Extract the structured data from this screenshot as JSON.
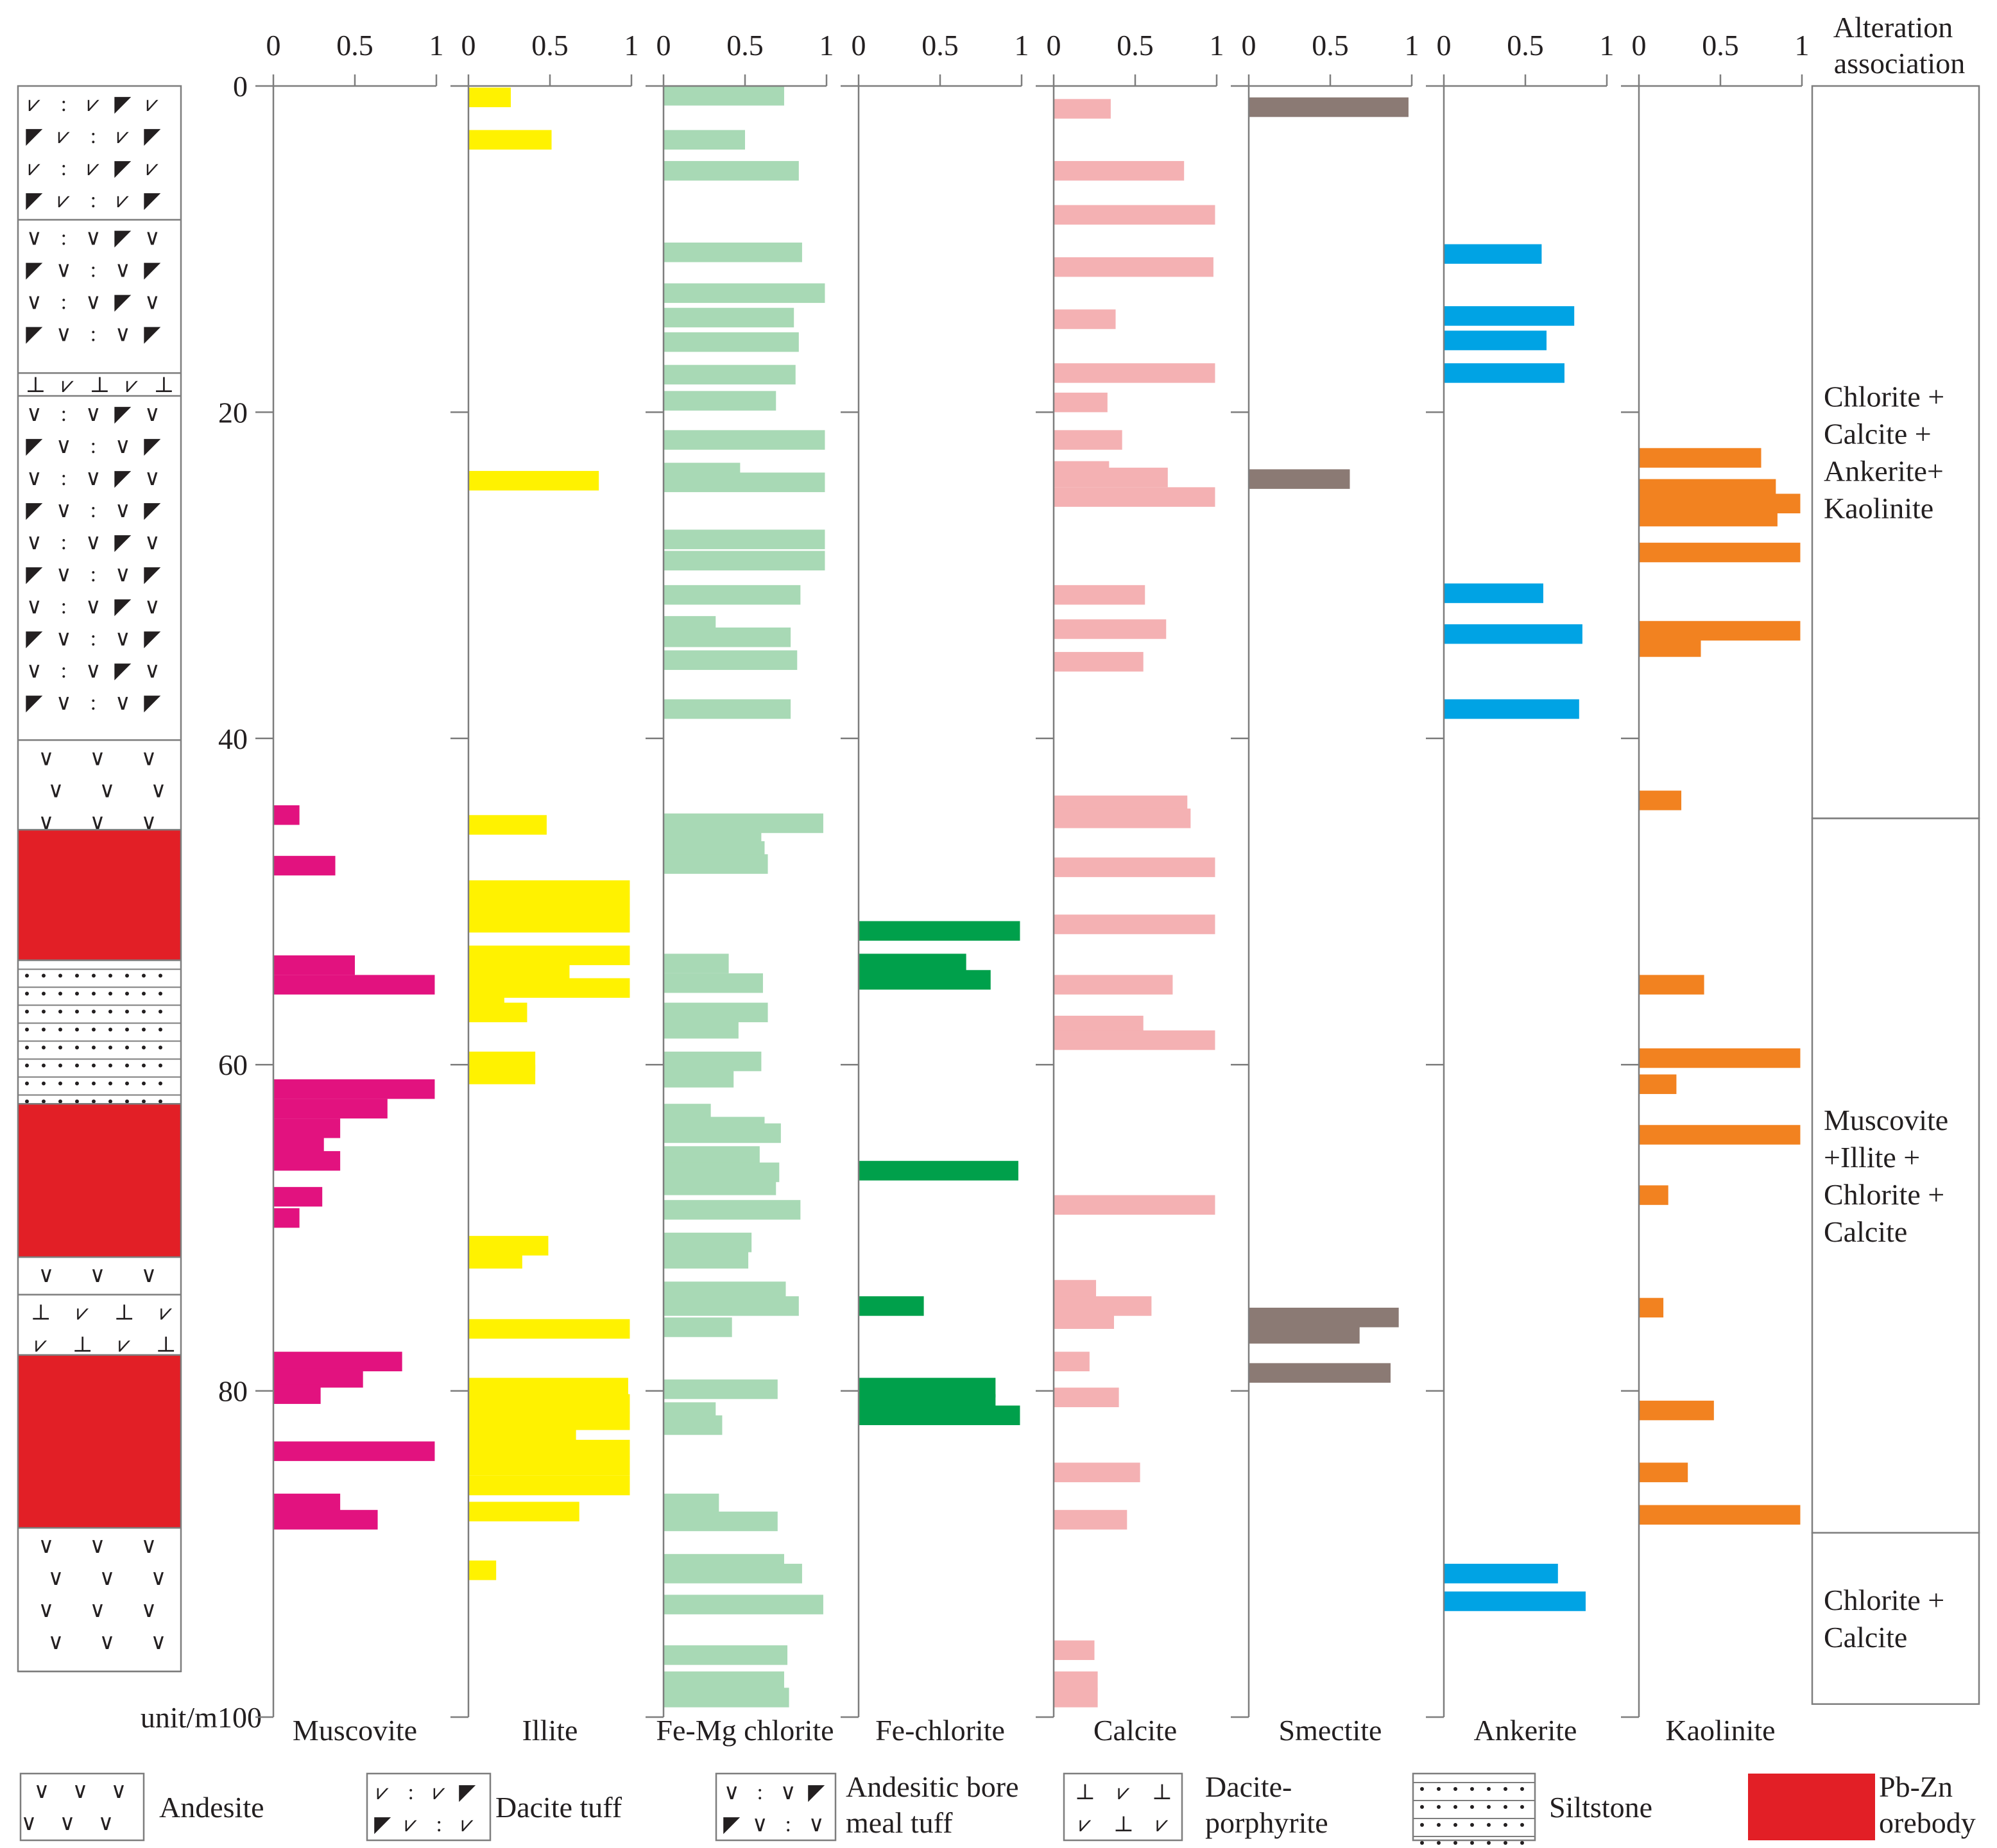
{
  "chart_data": {
    "type": "bar",
    "orientation": "horizontal",
    "y_unit_label": "unit/m",
    "depth_range": [
      0,
      100
    ],
    "depth_ticks": [
      "0",
      "20",
      "40",
      "60",
      "80",
      "100"
    ],
    "x_range": [
      0,
      1
    ],
    "x_ticks": [
      "0",
      "0.5",
      "1"
    ],
    "bar_height_m": 1.2,
    "series": [
      {
        "name": "Muscovite",
        "color": "#e2127f",
        "bars": [
          {
            "depth": 44.7,
            "value": 0.16
          },
          {
            "depth": 47.8,
            "value": 0.38
          },
          {
            "depth": 53.9,
            "value": 0.5
          },
          {
            "depth": 55.1,
            "value": 0.99
          },
          {
            "depth": 61.5,
            "value": 0.99
          },
          {
            "depth": 62.7,
            "value": 0.7
          },
          {
            "depth": 63.9,
            "value": 0.41
          },
          {
            "depth": 64.9,
            "value": 0.31
          },
          {
            "depth": 65.9,
            "value": 0.41
          },
          {
            "depth": 68.1,
            "value": 0.3
          },
          {
            "depth": 69.4,
            "value": 0.16
          },
          {
            "depth": 78.2,
            "value": 0.79
          },
          {
            "depth": 79.2,
            "value": 0.55
          },
          {
            "depth": 80.2,
            "value": 0.29
          },
          {
            "depth": 83.7,
            "value": 0.99
          },
          {
            "depth": 86.9,
            "value": 0.41
          },
          {
            "depth": 87.9,
            "value": 0.64
          }
        ]
      },
      {
        "name": "Illite",
        "color": "#fff200",
        "bars": [
          {
            "depth": 0.7,
            "value": 0.26
          },
          {
            "depth": 3.3,
            "value": 0.51
          },
          {
            "depth": 24.2,
            "value": 0.8
          },
          {
            "depth": 45.3,
            "value": 0.48
          },
          {
            "depth": 49.3,
            "value": 0.99
          },
          {
            "depth": 50.3,
            "value": 0.99
          },
          {
            "depth": 51.3,
            "value": 0.99
          },
          {
            "depth": 53.3,
            "value": 0.99
          },
          {
            "depth": 54.3,
            "value": 0.62
          },
          {
            "depth": 55.3,
            "value": 0.99
          },
          {
            "depth": 55.9,
            "value": 0.22
          },
          {
            "depth": 56.8,
            "value": 0.36
          },
          {
            "depth": 59.8,
            "value": 0.41
          },
          {
            "depth": 60.6,
            "value": 0.41
          },
          {
            "depth": 71.1,
            "value": 0.49
          },
          {
            "depth": 71.9,
            "value": 0.33
          },
          {
            "depth": 76.2,
            "value": 0.99
          },
          {
            "depth": 79.8,
            "value": 0.98
          },
          {
            "depth": 80.8,
            "value": 0.99
          },
          {
            "depth": 81.8,
            "value": 0.99
          },
          {
            "depth": 82.6,
            "value": 0.66
          },
          {
            "depth": 83.6,
            "value": 0.99
          },
          {
            "depth": 84.6,
            "value": 0.99
          },
          {
            "depth": 85.8,
            "value": 0.99
          },
          {
            "depth": 87.4,
            "value": 0.68
          },
          {
            "depth": 91.0,
            "value": 0.17
          }
        ]
      },
      {
        "name": "Fe-Mg chlorite",
        "color": "#a8d9b5",
        "bars": [
          {
            "depth": 0.6,
            "value": 0.74
          },
          {
            "depth": 3.3,
            "value": 0.5
          },
          {
            "depth": 5.2,
            "value": 0.83
          },
          {
            "depth": 10.2,
            "value": 0.85
          },
          {
            "depth": 12.7,
            "value": 0.99
          },
          {
            "depth": 14.2,
            "value": 0.8
          },
          {
            "depth": 15.7,
            "value": 0.83
          },
          {
            "depth": 17.7,
            "value": 0.81
          },
          {
            "depth": 19.3,
            "value": 0.69
          },
          {
            "depth": 21.7,
            "value": 0.99
          },
          {
            "depth": 23.7,
            "value": 0.47
          },
          {
            "depth": 24.3,
            "value": 0.99
          },
          {
            "depth": 27.8,
            "value": 0.99
          },
          {
            "depth": 29.1,
            "value": 0.99
          },
          {
            "depth": 31.2,
            "value": 0.84
          },
          {
            "depth": 33.1,
            "value": 0.32
          },
          {
            "depth": 33.8,
            "value": 0.78
          },
          {
            "depth": 35.2,
            "value": 0.82
          },
          {
            "depth": 38.2,
            "value": 0.78
          },
          {
            "depth": 45.2,
            "value": 0.98
          },
          {
            "depth": 46.2,
            "value": 0.6
          },
          {
            "depth": 46.9,
            "value": 0.62
          },
          {
            "depth": 47.7,
            "value": 0.64
          },
          {
            "depth": 53.8,
            "value": 0.4
          },
          {
            "depth": 55.0,
            "value": 0.61
          },
          {
            "depth": 56.8,
            "value": 0.64
          },
          {
            "depth": 57.8,
            "value": 0.46
          },
          {
            "depth": 59.8,
            "value": 0.6
          },
          {
            "depth": 60.8,
            "value": 0.43
          },
          {
            "depth": 63.0,
            "value": 0.29
          },
          {
            "depth": 63.8,
            "value": 0.62
          },
          {
            "depth": 64.2,
            "value": 0.72
          },
          {
            "depth": 65.6,
            "value": 0.59
          },
          {
            "depth": 66.6,
            "value": 0.71
          },
          {
            "depth": 67.4,
            "value": 0.69
          },
          {
            "depth": 68.9,
            "value": 0.84
          },
          {
            "depth": 70.9,
            "value": 0.54
          },
          {
            "depth": 71.9,
            "value": 0.52
          },
          {
            "depth": 73.9,
            "value": 0.75
          },
          {
            "depth": 74.8,
            "value": 0.83
          },
          {
            "depth": 76.1,
            "value": 0.42
          },
          {
            "depth": 79.9,
            "value": 0.7
          },
          {
            "depth": 81.3,
            "value": 0.32
          },
          {
            "depth": 82.1,
            "value": 0.36
          },
          {
            "depth": 86.9,
            "value": 0.34
          },
          {
            "depth": 88.0,
            "value": 0.7
          },
          {
            "depth": 90.6,
            "value": 0.74
          },
          {
            "depth": 91.2,
            "value": 0.85
          },
          {
            "depth": 93.1,
            "value": 0.98
          },
          {
            "depth": 96.2,
            "value": 0.76
          },
          {
            "depth": 97.8,
            "value": 0.74
          },
          {
            "depth": 98.8,
            "value": 0.77
          }
        ]
      },
      {
        "name": "Fe-chlorite",
        "color": "#00a04b",
        "bars": [
          {
            "depth": 51.8,
            "value": 0.99
          },
          {
            "depth": 53.8,
            "value": 0.66
          },
          {
            "depth": 54.8,
            "value": 0.81
          },
          {
            "depth": 66.5,
            "value": 0.98
          },
          {
            "depth": 74.8,
            "value": 0.4
          },
          {
            "depth": 79.8,
            "value": 0.84
          },
          {
            "depth": 80.8,
            "value": 0.84
          },
          {
            "depth": 81.5,
            "value": 0.99
          }
        ]
      },
      {
        "name": "Calcite",
        "color": "#f4b1b3",
        "bars": [
          {
            "depth": 1.4,
            "value": 0.35
          },
          {
            "depth": 5.2,
            "value": 0.8
          },
          {
            "depth": 7.9,
            "value": 0.99
          },
          {
            "depth": 11.1,
            "value": 0.98
          },
          {
            "depth": 14.3,
            "value": 0.38
          },
          {
            "depth": 17.6,
            "value": 0.99
          },
          {
            "depth": 19.4,
            "value": 0.33
          },
          {
            "depth": 21.7,
            "value": 0.42
          },
          {
            "depth": 23.6,
            "value": 0.34
          },
          {
            "depth": 24.0,
            "value": 0.7
          },
          {
            "depth": 25.2,
            "value": 0.99
          },
          {
            "depth": 31.2,
            "value": 0.56
          },
          {
            "depth": 33.3,
            "value": 0.69
          },
          {
            "depth": 35.3,
            "value": 0.55
          },
          {
            "depth": 44.1,
            "value": 0.82
          },
          {
            "depth": 44.9,
            "value": 0.84
          },
          {
            "depth": 47.9,
            "value": 0.99
          },
          {
            "depth": 51.4,
            "value": 0.99
          },
          {
            "depth": 55.1,
            "value": 0.73
          },
          {
            "depth": 57.6,
            "value": 0.55
          },
          {
            "depth": 58.5,
            "value": 0.99
          },
          {
            "depth": 68.6,
            "value": 0.99
          },
          {
            "depth": 73.8,
            "value": 0.26
          },
          {
            "depth": 74.8,
            "value": 0.6
          },
          {
            "depth": 75.6,
            "value": 0.37
          },
          {
            "depth": 78.2,
            "value": 0.22
          },
          {
            "depth": 80.4,
            "value": 0.4
          },
          {
            "depth": 85.0,
            "value": 0.53
          },
          {
            "depth": 87.9,
            "value": 0.45
          },
          {
            "depth": 95.9,
            "value": 0.25
          },
          {
            "depth": 97.8,
            "value": 0.27
          },
          {
            "depth": 98.8,
            "value": 0.27
          }
        ]
      },
      {
        "name": "Smectite",
        "color": "#8b7a74",
        "bars": [
          {
            "depth": 1.3,
            "value": 0.98
          },
          {
            "depth": 24.1,
            "value": 0.62
          },
          {
            "depth": 75.5,
            "value": 0.92
          },
          {
            "depth": 76.5,
            "value": 0.68
          },
          {
            "depth": 78.9,
            "value": 0.87
          }
        ]
      },
      {
        "name": "Ankerite",
        "color": "#00a3e4",
        "bars": [
          {
            "depth": 10.3,
            "value": 0.6
          },
          {
            "depth": 14.1,
            "value": 0.8
          },
          {
            "depth": 15.6,
            "value": 0.63
          },
          {
            "depth": 17.6,
            "value": 0.74
          },
          {
            "depth": 31.1,
            "value": 0.61
          },
          {
            "depth": 33.6,
            "value": 0.85
          },
          {
            "depth": 38.2,
            "value": 0.83
          },
          {
            "depth": 91.2,
            "value": 0.7
          },
          {
            "depth": 92.9,
            "value": 0.87
          }
        ]
      },
      {
        "name": "Kaolinite",
        "color": "#f28220",
        "bars": [
          {
            "depth": 22.8,
            "value": 0.75
          },
          {
            "depth": 24.7,
            "value": 0.84
          },
          {
            "depth": 25.6,
            "value": 0.99
          },
          {
            "depth": 26.4,
            "value": 0.85
          },
          {
            "depth": 28.6,
            "value": 0.99
          },
          {
            "depth": 33.4,
            "value": 0.99
          },
          {
            "depth": 34.4,
            "value": 0.38
          },
          {
            "depth": 43.8,
            "value": 0.26
          },
          {
            "depth": 55.1,
            "value": 0.4
          },
          {
            "depth": 59.6,
            "value": 0.99
          },
          {
            "depth": 61.2,
            "value": 0.23
          },
          {
            "depth": 64.3,
            "value": 0.99
          },
          {
            "depth": 68.0,
            "value": 0.18
          },
          {
            "depth": 74.9,
            "value": 0.15
          },
          {
            "depth": 81.2,
            "value": 0.46
          },
          {
            "depth": 85.0,
            "value": 0.3
          },
          {
            "depth": 87.6,
            "value": 0.99
          }
        ]
      }
    ],
    "lithology_column": [
      {
        "type": "Dacite tuff",
        "top": 0,
        "bottom": 8.2
      },
      {
        "type": "Andesitic bore meal tuff",
        "top": 8.2,
        "bottom": 17.6
      },
      {
        "type": "Dacite-porphyrite",
        "top": 17.6,
        "bottom": 19.0
      },
      {
        "type": "Andesitic bore meal tuff",
        "top": 19.0,
        "bottom": 40.1
      },
      {
        "type": "Andesite",
        "top": 40.1,
        "bottom": 45.6
      },
      {
        "type": "Pb-Zn orebody",
        "top": 45.6,
        "bottom": 53.6
      },
      {
        "type": "Siltstone",
        "top": 53.6,
        "bottom": 62.4
      },
      {
        "type": "Pb-Zn orebody",
        "top": 62.4,
        "bottom": 71.8
      },
      {
        "type": "Andesite",
        "top": 71.8,
        "bottom": 74.1
      },
      {
        "type": "Dacite-porphyrite",
        "top": 74.1,
        "bottom": 77.8
      },
      {
        "type": "Pb-Zn orebody",
        "top": 77.8,
        "bottom": 88.4
      },
      {
        "type": "Andesite",
        "top": 88.4,
        "bottom": 97.2
      }
    ],
    "alteration_association": {
      "title_line1": "Alteration",
      "title_line2": "association",
      "zones": [
        {
          "top": 0,
          "bottom": 44.9,
          "lines": [
            "Chlorite +",
            "Calcite +",
            "Ankerite+",
            "Kaolinite"
          ]
        },
        {
          "top": 44.9,
          "bottom": 88.7,
          "lines": [
            "Muscovite",
            "+Illite +",
            "Chlorite +",
            "Calcite"
          ]
        },
        {
          "top": 88.7,
          "bottom": 99.2,
          "lines": [
            "Chlorite +",
            "Calcite"
          ]
        }
      ]
    },
    "legend": [
      {
        "type": "Andesite",
        "lines": [
          "Andesite"
        ]
      },
      {
        "type": "Dacite tuff",
        "lines": [
          "Dacite tuff"
        ]
      },
      {
        "type": "Andesitic bore meal tuff",
        "lines": [
          "Andesitic bore",
          "meal tuff"
        ]
      },
      {
        "type": "Dacite-porphyrite",
        "lines": [
          "Dacite-",
          "porphyrite"
        ]
      },
      {
        "type": "Siltstone",
        "lines": [
          "Siltstone"
        ]
      },
      {
        "type": "Pb-Zn orebody",
        "lines": [
          "Pb-Zn",
          "orebody"
        ]
      }
    ],
    "colors": {
      "orebody": "#e21f26",
      "axis": "#7d7d7d",
      "text": "#231f20"
    }
  }
}
